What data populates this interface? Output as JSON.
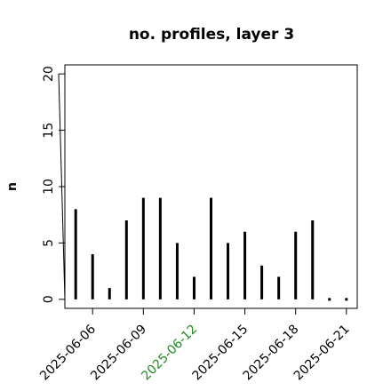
{
  "chart_data": {
    "type": "needle",
    "title": "no. profiles, layer 3",
    "ylabel": "n",
    "x": [
      "2025-06-05",
      "2025-06-06",
      "2025-06-07",
      "2025-06-08",
      "2025-06-09",
      "2025-06-10",
      "2025-06-11",
      "2025-06-12",
      "2025-06-13",
      "2025-06-14",
      "2025-06-15",
      "2025-06-16",
      "2025-06-17",
      "2025-06-18",
      "2025-06-19",
      "2025-06-20",
      "2025-06-21"
    ],
    "values": [
      8,
      4,
      1,
      7,
      9,
      9,
      5,
      2,
      9,
      5,
      6,
      3,
      2,
      6,
      7,
      0,
      0
    ],
    "color": "#000000",
    "xlim": [
      "2025-06-05",
      "2025-06-21"
    ],
    "xticks": [
      "2025-06-06",
      "2025-06-09",
      "2025-06-12",
      "2025-06-15",
      "2025-06-18",
      "2025-06-21"
    ],
    "xtick_colors": [
      "#000000",
      "#000000",
      "#228b22",
      "#000000",
      "#000000",
      "#000000"
    ],
    "ylim": [
      0,
      20
    ],
    "yticks": [
      0,
      5,
      10,
      15,
      20
    ]
  }
}
